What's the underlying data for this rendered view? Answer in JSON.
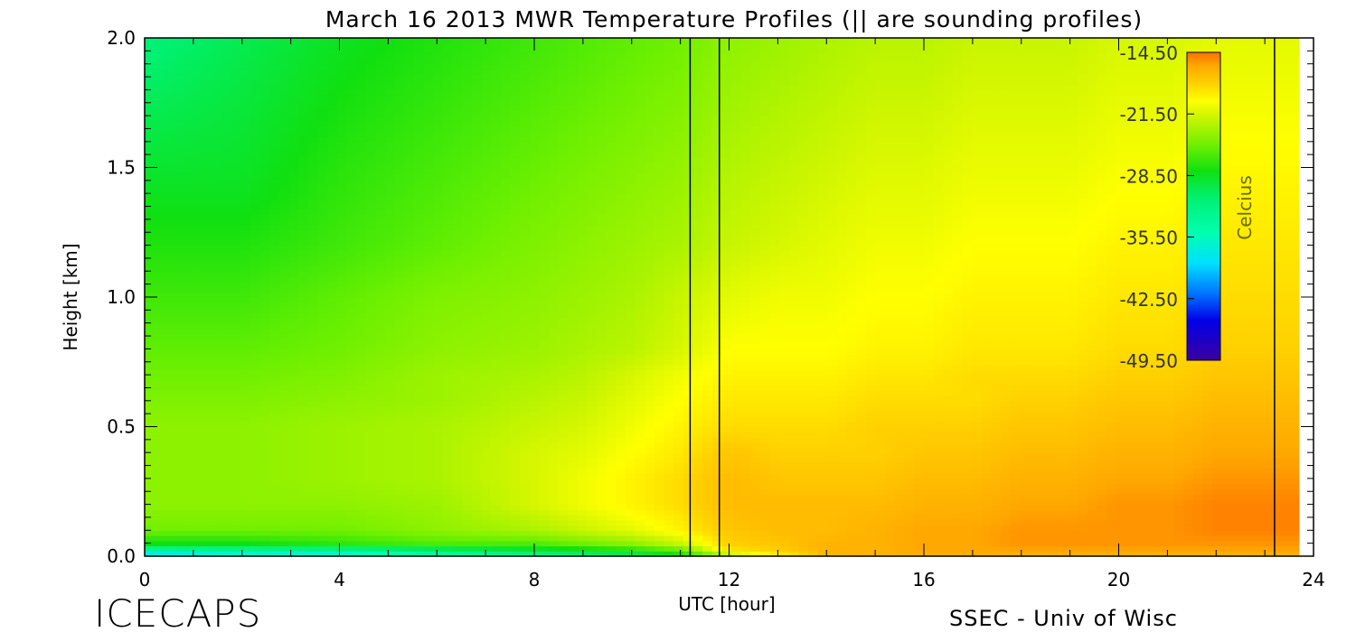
{
  "chart_data": {
    "type": "heatmap",
    "title": "March 16 2013 MWR Temperature Profiles (|| are sounding profiles)",
    "xlabel": "UTC [hour]",
    "ylabel": "Height [km]",
    "xlim": [
      0,
      24
    ],
    "ylim": [
      0,
      2.0
    ],
    "xticks": [
      0,
      4,
      8,
      12,
      16,
      20,
      24
    ],
    "yticks": [
      0.0,
      0.5,
      1.0,
      1.5,
      2.0
    ],
    "x_tick_labels": [
      "0",
      "4",
      "8",
      "12",
      "16",
      "20",
      "24"
    ],
    "y_tick_labels": [
      "0.0",
      "0.5",
      "1.0",
      "1.5",
      "2.0"
    ],
    "data_end_hour": 23.7,
    "sounding_times": [
      11.2,
      11.8,
      23.2
    ],
    "colorbar": {
      "label": "Celcius",
      "min": -49.5,
      "max": -14.5,
      "tick_labels": [
        "-14.50",
        "-21.50",
        "-28.50",
        "-35.50",
        "-42.50",
        "-49.50"
      ],
      "tick_values": [
        -14.5,
        -21.5,
        -28.5,
        -35.5,
        -42.5,
        -49.5
      ],
      "stops": [
        {
          "value": -49.5,
          "color": "#3a00a0"
        },
        {
          "value": -45.0,
          "color": "#0000e8"
        },
        {
          "value": -42.0,
          "color": "#0070ff"
        },
        {
          "value": -38.5,
          "color": "#00e0ff"
        },
        {
          "value": -35.0,
          "color": "#00ffb0"
        },
        {
          "value": -31.0,
          "color": "#00f070"
        },
        {
          "value": -28.0,
          "color": "#10e010"
        },
        {
          "value": -25.0,
          "color": "#70f000"
        },
        {
          "value": -22.0,
          "color": "#c8f500"
        },
        {
          "value": -20.0,
          "color": "#ffff00"
        },
        {
          "value": -18.0,
          "color": "#ffd000"
        },
        {
          "value": -16.0,
          "color": "#ffa800"
        },
        {
          "value": -14.5,
          "color": "#ff7000"
        }
      ]
    },
    "temperature_grid": {
      "hours": [
        0,
        2,
        4,
        6,
        8,
        9,
        10,
        11,
        12,
        13,
        14,
        15,
        16,
        17,
        18,
        19,
        20,
        21,
        22,
        23,
        23.7
      ],
      "heights_km": [
        0.0,
        0.02,
        0.05,
        0.1,
        0.2,
        0.3,
        0.4,
        0.5,
        0.6,
        0.7,
        0.8,
        1.0,
        1.2,
        1.4,
        1.6,
        1.8,
        2.0
      ],
      "values": [
        [
          -40,
          -35,
          -28,
          -25,
          -24,
          -24,
          -24,
          -24,
          -24.5,
          -25,
          -25.5,
          -26.5,
          -27.5,
          -28.5,
          -29.5,
          -30.5,
          -31.5
        ],
        [
          -38,
          -34,
          -28,
          -25,
          -24,
          -24,
          -24,
          -24,
          -24.5,
          -25,
          -25.5,
          -26.5,
          -27.5,
          -28.5,
          -29,
          -29.5,
          -30
        ],
        [
          -38,
          -34,
          -27,
          -25,
          -24,
          -23.5,
          -23.5,
          -23.5,
          -24,
          -24.5,
          -25,
          -25.5,
          -26.5,
          -27,
          -27.5,
          -28,
          -28.5
        ],
        [
          -35,
          -32,
          -26,
          -24,
          -23.5,
          -23,
          -23,
          -23,
          -23.5,
          -23.5,
          -24,
          -24.5,
          -25.5,
          -26,
          -26.5,
          -27,
          -27.5
        ],
        [
          -33,
          -30,
          -26,
          -23,
          -21.5,
          -21.5,
          -21.5,
          -22,
          -22.5,
          -23,
          -23.5,
          -24,
          -24.5,
          -25,
          -25.5,
          -26,
          -26.5
        ],
        [
          -32,
          -29,
          -25,
          -22,
          -20.5,
          -20.5,
          -21,
          -21.5,
          -22,
          -22.5,
          -23,
          -23.5,
          -24,
          -24.5,
          -25,
          -25.5,
          -26
        ],
        [
          -31,
          -28,
          -24,
          -21,
          -19.5,
          -19.5,
          -20,
          -20.5,
          -21,
          -21.5,
          -22.5,
          -23,
          -23.5,
          -24,
          -24.5,
          -25,
          -25.5
        ],
        [
          -29,
          -26,
          -22,
          -19.5,
          -18.5,
          -18.5,
          -19,
          -19.5,
          -20,
          -20.5,
          -21.5,
          -22,
          -23,
          -23.5,
          -24,
          -24.5,
          -25
        ],
        [
          -24,
          -19,
          -18,
          -17.5,
          -17,
          -17,
          -17.5,
          -18.5,
          -19,
          -19.5,
          -20,
          -21,
          -22,
          -22.5,
          -23,
          -23.5,
          -24
        ],
        [
          -20,
          -18,
          -17.5,
          -17,
          -17,
          -17.5,
          -18,
          -18.5,
          -19,
          -19.5,
          -20,
          -20.5,
          -21.5,
          -22,
          -22.5,
          -23,
          -23.5
        ],
        [
          -17,
          -16.5,
          -16.5,
          -17,
          -17,
          -17.5,
          -18,
          -18.5,
          -19,
          -19.5,
          -20,
          -20.5,
          -21,
          -21.5,
          -22,
          -22.5,
          -23
        ],
        [
          -16.5,
          -16.5,
          -16.5,
          -16.5,
          -17,
          -17.5,
          -18,
          -18,
          -18.5,
          -19,
          -19.5,
          -20,
          -20.5,
          -21,
          -21.5,
          -22,
          -22.5
        ],
        [
          -16.5,
          -16,
          -16,
          -16,
          -16.5,
          -17,
          -17.5,
          -18,
          -18.5,
          -19,
          -19.5,
          -20,
          -20.5,
          -21,
          -21.5,
          -22,
          -22.5
        ],
        [
          -16.5,
          -16,
          -16,
          -16,
          -16.5,
          -17,
          -17.5,
          -18,
          -18.5,
          -18.5,
          -19,
          -19.5,
          -20,
          -20.5,
          -21,
          -21.5,
          -22
        ],
        [
          -16.5,
          -16,
          -15.5,
          -15.5,
          -16,
          -16.5,
          -17,
          -17.5,
          -18,
          -18.5,
          -19,
          -19.5,
          -20,
          -20.5,
          -21,
          -21.5,
          -22
        ],
        [
          -16.5,
          -16,
          -15.5,
          -15.5,
          -16,
          -16.5,
          -17,
          -17.5,
          -18,
          -18.5,
          -19,
          -19.5,
          -20,
          -20.5,
          -21,
          -21.5,
          -22
        ],
        [
          -16.5,
          -16,
          -15.5,
          -15.5,
          -15.5,
          -16,
          -16.5,
          -17,
          -17.5,
          -18,
          -18.5,
          -19,
          -19.5,
          -20,
          -20.5,
          -21,
          -21.5
        ],
        [
          -16.5,
          -16,
          -15.5,
          -15.5,
          -15.5,
          -16,
          -16.5,
          -17,
          -17.5,
          -18,
          -18.5,
          -19,
          -19.5,
          -20,
          -20.5,
          -21,
          -21.5
        ],
        [
          -16.5,
          -16,
          -15.5,
          -15,
          -15,
          -15.5,
          -16,
          -16.5,
          -17,
          -17.5,
          -18,
          -18.5,
          -19,
          -19.5,
          -20,
          -20.5,
          -21
        ],
        [
          -16.5,
          -16,
          -15.5,
          -15,
          -15,
          -15.5,
          -16,
          -16.5,
          -17,
          -17.5,
          -18,
          -18.5,
          -19,
          -19.5,
          -20,
          -20.5,
          -21
        ],
        [
          -16.5,
          -16,
          -15.5,
          -15,
          -15,
          -15.5,
          -16,
          -16.5,
          -17,
          -17.5,
          -18,
          -18.5,
          -19,
          -19.5,
          -20,
          -20.5,
          -21
        ]
      ]
    }
  },
  "footer": {
    "logo": "ICECAPS",
    "credit": "SSEC - Univ of Wisc"
  }
}
